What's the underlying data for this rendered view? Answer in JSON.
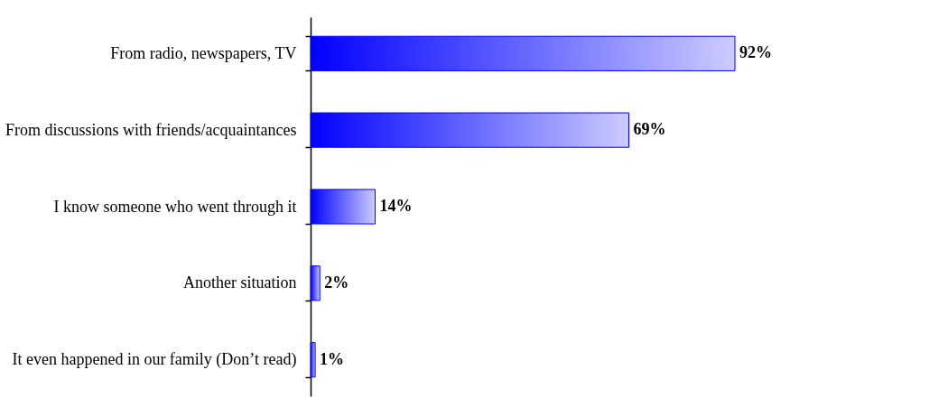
{
  "chart_data": {
    "type": "bar",
    "orientation": "horizontal",
    "categories": [
      "From radio, newspapers, TV",
      "From discussions with friends/acquaintances",
      "I know someone who went through it",
      "Another situation",
      "It even happened in our family (Don’t read)"
    ],
    "values": [
      92,
      69,
      14,
      2,
      1
    ],
    "color": "#0000ff",
    "value_labels": [
      "92%",
      "69%",
      "14%",
      "2%",
      "1%"
    ]
  }
}
